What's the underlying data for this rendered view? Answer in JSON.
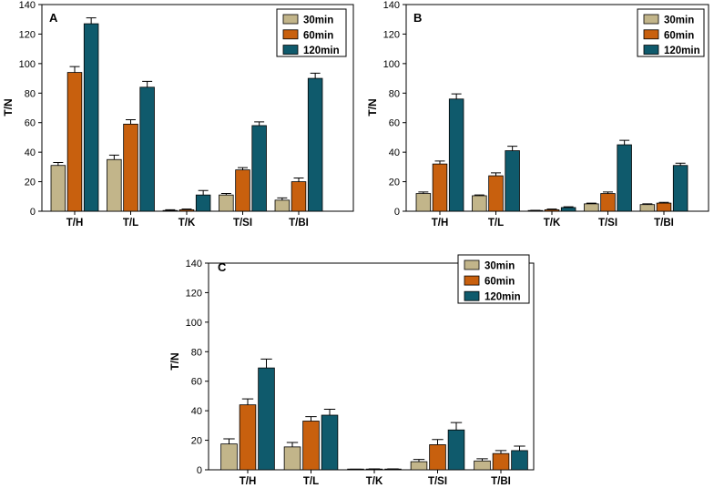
{
  "series_colors": [
    "#c2b58a",
    "#c8600e",
    "#0f5a6c"
  ],
  "chart_data": [
    {
      "type": "bar",
      "panel": "A",
      "title": "",
      "xlabel": "",
      "ylabel": "T/N",
      "ylim": [
        0,
        140
      ],
      "yticks": [
        0,
        20,
        40,
        60,
        80,
        100,
        120,
        140
      ],
      "categories": [
        "T/H",
        "T/L",
        "T/K",
        "T/SI",
        "T/BI"
      ],
      "legend_position": "top-right",
      "series": [
        {
          "name": "30min",
          "values": [
            31,
            35,
            0.5,
            11,
            7.5
          ],
          "errors": [
            2,
            3,
            0.5,
            1,
            1.5
          ]
        },
        {
          "name": "60min",
          "values": [
            94,
            59,
            1,
            28,
            20
          ],
          "errors": [
            4,
            3,
            0.5,
            1.5,
            2.5
          ]
        },
        {
          "name": "120min",
          "values": [
            127,
            84,
            11,
            58,
            90
          ],
          "errors": [
            4,
            4,
            3,
            2.5,
            3.5
          ]
        }
      ]
    },
    {
      "type": "bar",
      "panel": "B",
      "title": "",
      "xlabel": "",
      "ylabel": "T/N",
      "ylim": [
        0,
        140
      ],
      "yticks": [
        0,
        20,
        40,
        60,
        80,
        100,
        120,
        140
      ],
      "categories": [
        "T/H",
        "T/L",
        "T/K",
        "T/SI",
        "T/BI"
      ],
      "legend_position": "top-right",
      "series": [
        {
          "name": "30min",
          "values": [
            12,
            10.5,
            0.3,
            5,
            4.5
          ],
          "errors": [
            1,
            0.5,
            0.3,
            0.5,
            0.5
          ]
        },
        {
          "name": "60min",
          "values": [
            32,
            24,
            1,
            12,
            5.5
          ],
          "errors": [
            2,
            2,
            0.5,
            1,
            0.5
          ]
        },
        {
          "name": "120min",
          "values": [
            76,
            41,
            2.5,
            45,
            31
          ],
          "errors": [
            3.5,
            3,
            0.5,
            3,
            1.5
          ]
        }
      ]
    },
    {
      "type": "bar",
      "panel": "C",
      "title": "",
      "xlabel": "",
      "ylabel": "T/N",
      "ylim": [
        0,
        140
      ],
      "yticks": [
        0,
        20,
        40,
        60,
        80,
        100,
        120,
        140
      ],
      "categories": [
        "T/H",
        "T/L",
        "T/K",
        "T/SI",
        "T/BI"
      ],
      "legend_position": "top-right",
      "series": [
        {
          "name": "30min",
          "values": [
            17.5,
            15.5,
            0.2,
            5.5,
            6
          ],
          "errors": [
            3.5,
            3,
            0.2,
            1.5,
            1.5
          ]
        },
        {
          "name": "60min",
          "values": [
            44,
            33,
            0.3,
            17,
            11
          ],
          "errors": [
            4,
            3,
            0.3,
            3.5,
            2
          ]
        },
        {
          "name": "120min",
          "values": [
            69,
            37,
            0.3,
            27,
            13
          ],
          "errors": [
            6,
            4,
            0.3,
            5,
            3
          ]
        }
      ]
    }
  ]
}
